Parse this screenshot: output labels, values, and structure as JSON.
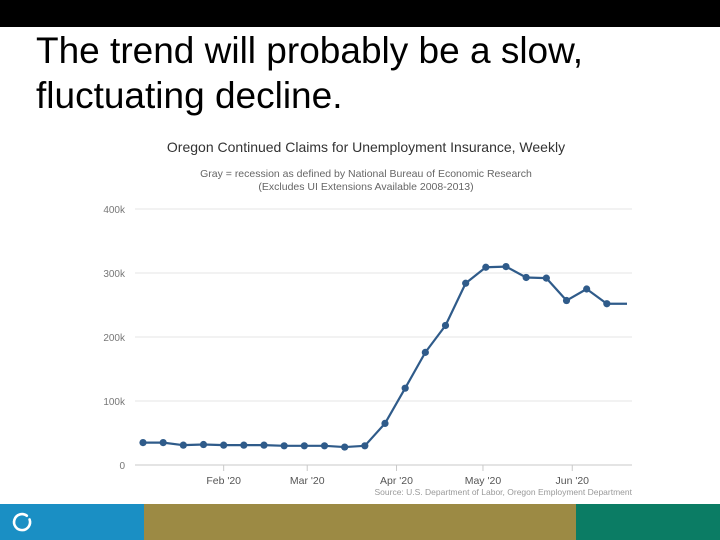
{
  "slide": {
    "title": "The trend will probably be a slow, fluctuating decline."
  },
  "colors": {
    "top_bar": "#000000",
    "footer": [
      "#1a8fc4",
      "#9c8a44",
      "#0b7c64"
    ],
    "series_line": "#2f5b8a",
    "axis_text": "#777777",
    "grid": "#e6e6e6"
  },
  "icons": {
    "footer_logo": "circle-logo-icon"
  },
  "chart_data": {
    "type": "line",
    "title": "Oregon Continued Claims for Unemployment Insurance, Weekly",
    "subtitle_lines": [
      "Gray = recession as defined by National Bureau of Economic Research",
      "(Excludes UI Extensions Available 2008-2013)"
    ],
    "source": "Source: U.S. Department of Labor, Oregon Employment Department",
    "xlabel": "",
    "ylabel": "",
    "ylim": [
      0,
      400000
    ],
    "y_ticks": [
      0,
      100000,
      200000,
      300000,
      400000
    ],
    "y_tick_labels": [
      "0",
      "100k",
      "200k",
      "300k",
      "400k"
    ],
    "x_ticks": [
      {
        "label": "Feb '20",
        "date": "2020-02-01"
      },
      {
        "label": "Mar '20",
        "date": "2020-03-01"
      },
      {
        "label": "Apr '20",
        "date": "2020-04-01"
      },
      {
        "label": "May '20",
        "date": "2020-05-01"
      },
      {
        "label": "Jun '20",
        "date": "2020-06-01"
      }
    ],
    "x_range": [
      "2020-01-04",
      "2020-06-20"
    ],
    "grid": true,
    "legend": "none",
    "series": [
      {
        "x": [
          "2020-01-04",
          "2020-01-11",
          "2020-01-18",
          "2020-01-25",
          "2020-02-01",
          "2020-02-08",
          "2020-02-15",
          "2020-02-22",
          "2020-02-29",
          "2020-03-07",
          "2020-03-14",
          "2020-03-21",
          "2020-03-28",
          "2020-04-04",
          "2020-04-11",
          "2020-04-18",
          "2020-04-25",
          "2020-05-02",
          "2020-05-09",
          "2020-05-16",
          "2020-05-23",
          "2020-05-30",
          "2020-06-06",
          "2020-06-13",
          "2020-06-20"
        ],
        "y": [
          35000,
          35000,
          31000,
          32000,
          31000,
          31000,
          31000,
          30000,
          30000,
          30000,
          28000,
          30000,
          65000,
          120000,
          176000,
          218000,
          284000,
          309000,
          310000,
          293000,
          292000,
          257000,
          275000,
          252000,
          252000
        ]
      }
    ]
  }
}
